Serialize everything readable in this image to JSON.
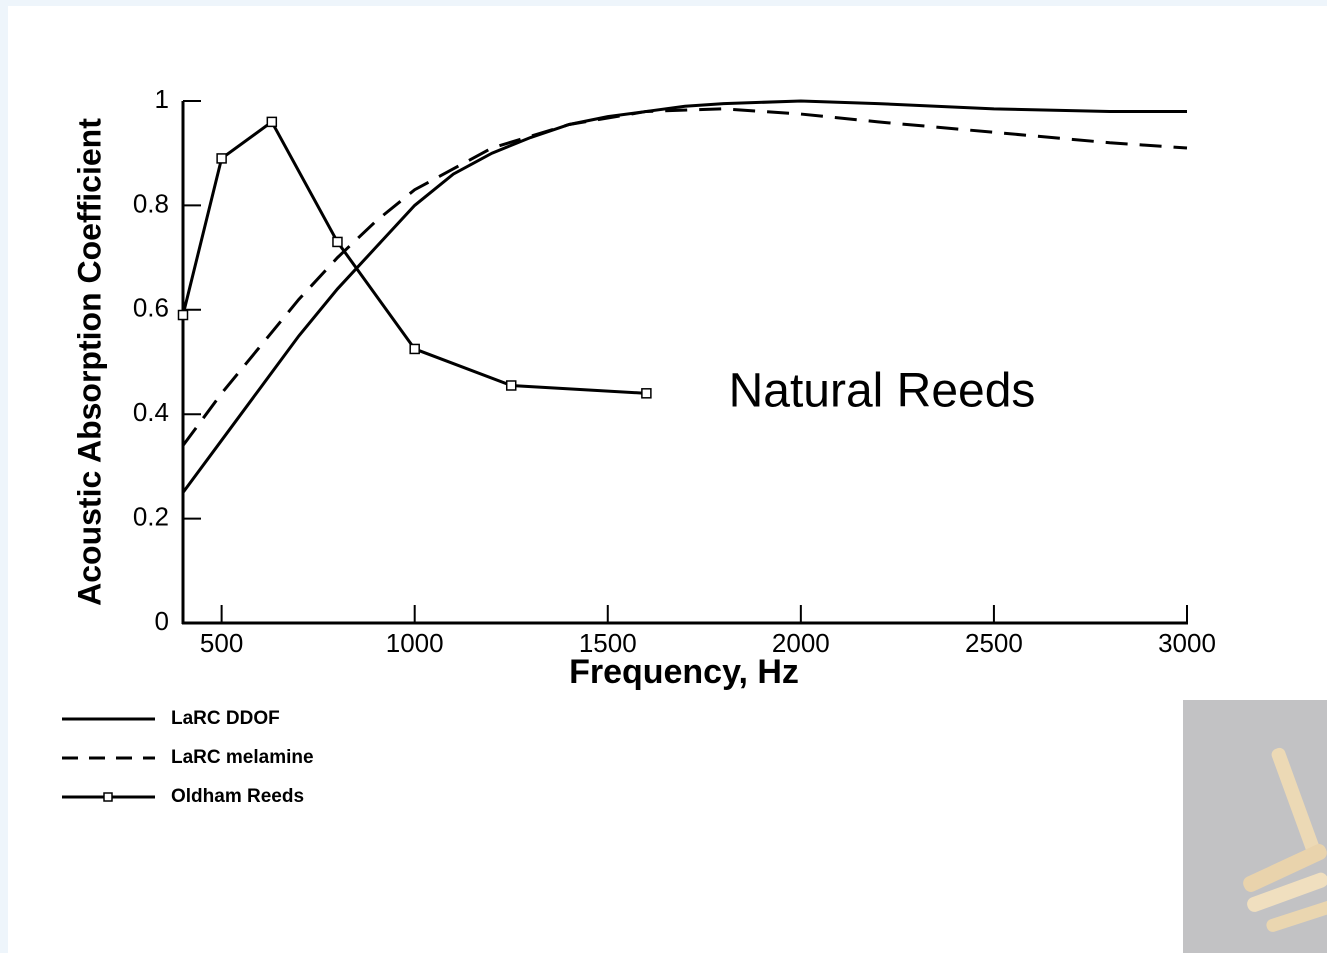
{
  "chart_data": {
    "type": "line",
    "x_label": "Frequency, Hz",
    "y_label": "Acoustic Absorption Coefficient",
    "annotation": "Natural Reeds",
    "xlim": [
      400,
      3000
    ],
    "xticks": [
      500,
      1000,
      1500,
      2000,
      2500,
      3000
    ],
    "ylim": [
      0,
      1
    ],
    "yticks": [
      0,
      0.2,
      0.4,
      0.6,
      0.8,
      1
    ],
    "series": [
      {
        "name": "LaRC DDOF",
        "color": "#000000",
        "linestyle": "solid",
        "marker": "none",
        "x": [
          400,
          500,
          600,
          700,
          800,
          900,
          1000,
          1100,
          1200,
          1300,
          1400,
          1500,
          1600,
          1700,
          1800,
          2000,
          2200,
          2500,
          2800,
          3000
        ],
        "values": [
          0.25,
          0.35,
          0.45,
          0.55,
          0.64,
          0.72,
          0.8,
          0.86,
          0.9,
          0.93,
          0.955,
          0.97,
          0.98,
          0.99,
          0.995,
          1.0,
          0.995,
          0.985,
          0.98,
          0.98
        ]
      },
      {
        "name": "LaRC melamine",
        "color": "#000000",
        "linestyle": "dashed",
        "marker": "none",
        "x": [
          400,
          500,
          600,
          700,
          800,
          900,
          1000,
          1200,
          1400,
          1600,
          1800,
          2000,
          2200,
          2500,
          2800,
          3000
        ],
        "values": [
          0.34,
          0.44,
          0.53,
          0.62,
          0.7,
          0.77,
          0.83,
          0.91,
          0.955,
          0.98,
          0.985,
          0.975,
          0.96,
          0.94,
          0.92,
          0.91
        ]
      },
      {
        "name": "Oldham Reeds",
        "color": "#000000",
        "linestyle": "solid",
        "marker": "square",
        "x": [
          400,
          500,
          630,
          800,
          1000,
          1250,
          1600
        ],
        "values": [
          0.59,
          0.89,
          0.96,
          0.73,
          0.525,
          0.455,
          0.44
        ]
      }
    ]
  }
}
